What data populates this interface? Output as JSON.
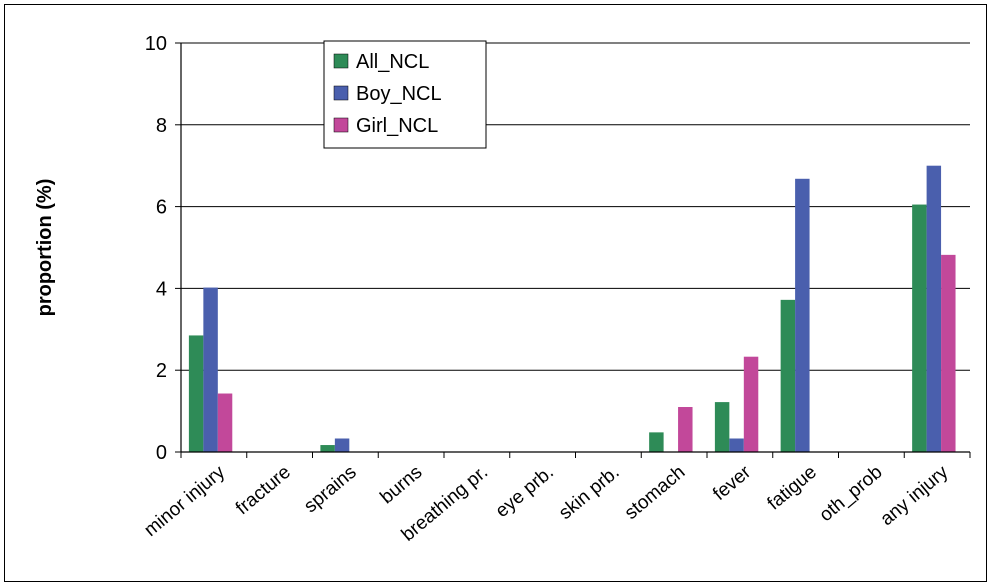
{
  "chart_data": {
    "type": "bar",
    "title": "",
    "xlabel": "",
    "ylabel": "proportion (%)",
    "ylim": [
      0,
      10
    ],
    "yticks": [
      0,
      2,
      4,
      6,
      8,
      10
    ],
    "grid": "horizontal",
    "legend_position": "top-left",
    "categories": [
      "minor injury",
      "fracture",
      "sprains",
      "burns",
      "breathing pr.",
      "eye prb.",
      "skin prb.",
      "stomach",
      "fever",
      "fatigue",
      "oth_prob",
      "any injury"
    ],
    "series": [
      {
        "name": "All_NCL",
        "color": "#2e8b57",
        "values": [
          2.85,
          0,
          0.17,
          0,
          0,
          0,
          0,
          0.48,
          1.22,
          3.72,
          0,
          6.05
        ]
      },
      {
        "name": "Boy_NCL",
        "color": "#4a5fad",
        "values": [
          4.02,
          0,
          0.33,
          0,
          0,
          0,
          0,
          0,
          0.33,
          6.68,
          0,
          7.0
        ]
      },
      {
        "name": "Girl_NCL",
        "color": "#c2489a",
        "values": [
          1.43,
          0,
          0,
          0,
          0,
          0,
          0,
          1.1,
          2.33,
          0,
          0,
          4.82
        ]
      }
    ]
  }
}
